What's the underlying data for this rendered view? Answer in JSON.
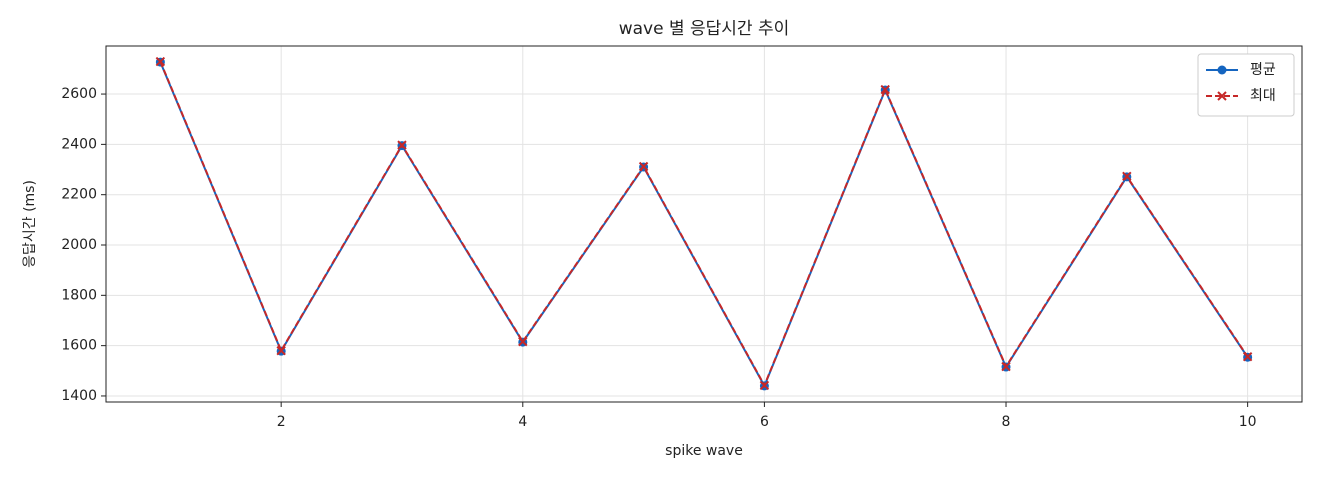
{
  "chart_data": {
    "type": "line",
    "title": "wave 별 응답시간 추이",
    "x_label": "spike wave",
    "y_label": "응답시간 (ms)",
    "x": [
      1,
      2,
      3,
      4,
      5,
      6,
      7,
      8,
      9,
      10
    ],
    "series": [
      {
        "name": "평균",
        "color": "#1565c0",
        "line_style": "solid",
        "marker": "circle",
        "values": [
          2727,
          1578,
          2395,
          1614,
          2310,
          1440,
          2616,
          1515,
          2271,
          1554
        ]
      },
      {
        "name": "최대",
        "color": "#c62828",
        "line_style": "dashed",
        "marker": "x",
        "values": [
          2729,
          1580,
          2397,
          1616,
          2312,
          1442,
          2618,
          1517,
          2273,
          1556
        ]
      }
    ],
    "xlim": [
      0.55,
      10.45
    ],
    "xticks": [
      2,
      4,
      6,
      8,
      10
    ],
    "ylim": [
      1376,
      2791
    ],
    "yticks": [
      1400,
      1600,
      1800,
      2000,
      2200,
      2400,
      2600
    ],
    "grid": true,
    "legend_position": "upper-right"
  }
}
